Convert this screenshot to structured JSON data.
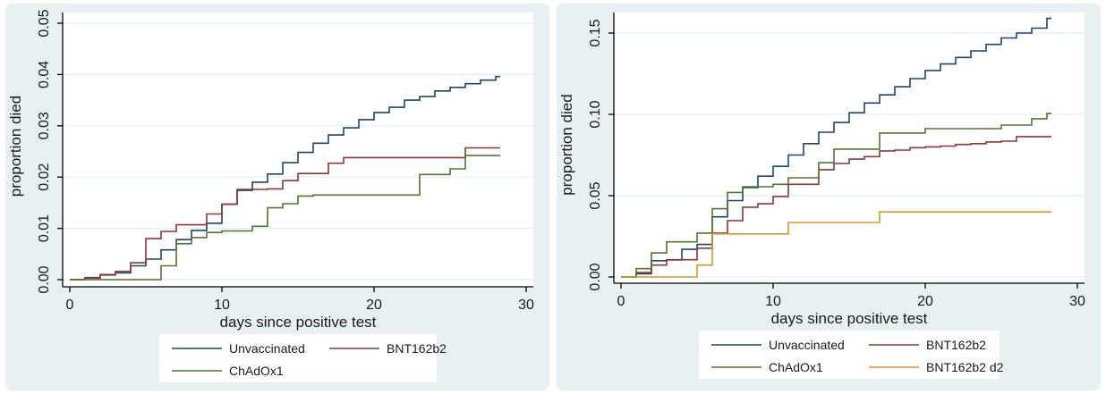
{
  "figure": {
    "background": "#ffffff",
    "panel_background": "#e9f0f2",
    "plot_background": "#ffffff",
    "grid_color": "#e4eef2",
    "axis_color": "#000000",
    "text_color": "#1a1a1a",
    "legend_background": "#ffffff"
  },
  "chart_data": [
    {
      "type": "line",
      "line_style": "step-after",
      "panel": "left",
      "title": "",
      "xlabel": "days since positive test",
      "ylabel": "proportion died",
      "xlim": [
        0,
        30
      ],
      "ylim": [
        0,
        0.05
      ],
      "xticks": [
        0,
        10,
        20,
        30
      ],
      "xtick_labels": [
        "0",
        "10",
        "20",
        "30"
      ],
      "yticks": [
        0,
        0.01,
        0.02,
        0.03,
        0.04,
        0.05
      ],
      "ytick_labels": [
        "0.00",
        "0.01",
        "0.02",
        "0.03",
        "0.04",
        "0.05"
      ],
      "grid": "horizontal",
      "legend_position": "bottom-center",
      "legend_columns": 2,
      "x": [
        0,
        1,
        2,
        3,
        4,
        5,
        6,
        7,
        8,
        9,
        10,
        11,
        12,
        13,
        14,
        15,
        16,
        17,
        18,
        19,
        20,
        21,
        22,
        23,
        24,
        25,
        26,
        27,
        28
      ],
      "series": [
        {
          "name": "Unvaccinated",
          "color": "#1a476f",
          "values": [
            0,
            0.0004,
            0.0009,
            0.0013,
            0.0027,
            0.004,
            0.0058,
            0.0078,
            0.0096,
            0.011,
            0.0147,
            0.0174,
            0.019,
            0.0206,
            0.0228,
            0.0248,
            0.0266,
            0.0282,
            0.0296,
            0.0312,
            0.0326,
            0.0336,
            0.035,
            0.0357,
            0.0368,
            0.0375,
            0.0382,
            0.0389,
            0.0396
          ]
        },
        {
          "name": "BNT162b2",
          "color": "#90353b",
          "values": [
            0,
            0.0003,
            0.001,
            0.0016,
            0.0033,
            0.008,
            0.0094,
            0.0107,
            0.0107,
            0.0128,
            0.0147,
            0.0176,
            0.0176,
            0.0177,
            0.0193,
            0.0207,
            0.0207,
            0.0227,
            0.0238,
            0.0238,
            0.0238,
            0.0238,
            0.0238,
            0.0238,
            0.0238,
            0.0238,
            0.0257,
            0.0257,
            0.0257
          ]
        },
        {
          "name": "ChAdOx1",
          "color": "#55752f",
          "values": [
            0,
            0,
            0,
            0,
            0,
            0,
            0.0027,
            0.007,
            0.0082,
            0.0092,
            0.0095,
            0.0095,
            0.0104,
            0.014,
            0.0148,
            0.0163,
            0.0165,
            0.0165,
            0.0165,
            0.0165,
            0.0165,
            0.0165,
            0.0165,
            0.0205,
            0.0205,
            0.0216,
            0.0242,
            0.0242,
            0.0242
          ]
        }
      ]
    },
    {
      "type": "line",
      "line_style": "step-after",
      "panel": "right",
      "title": "",
      "xlabel": "days since positive test",
      "ylabel": "proportion died",
      "xlim": [
        0,
        30
      ],
      "ylim": [
        0,
        0.15
      ],
      "xticks": [
        0,
        10,
        20,
        30
      ],
      "xtick_labels": [
        "0",
        "10",
        "20",
        "30"
      ],
      "yticks": [
        0,
        0.05,
        0.1,
        0.15
      ],
      "ytick_labels": [
        "0.00",
        "0.05",
        "0.10",
        "0.15"
      ],
      "grid": "horizontal",
      "legend_position": "bottom-center",
      "legend_columns": 2,
      "x": [
        0,
        1,
        2,
        3,
        4,
        5,
        6,
        7,
        8,
        9,
        10,
        11,
        12,
        13,
        14,
        15,
        16,
        17,
        18,
        19,
        20,
        21,
        22,
        23,
        24,
        25,
        26,
        27,
        28
      ],
      "series": [
        {
          "name": "Unvaccinated",
          "color": "#1a476f",
          "values": [
            0,
            0.002,
            0.01,
            0.0105,
            0.017,
            0.02,
            0.037,
            0.047,
            0.055,
            0.062,
            0.068,
            0.075,
            0.082,
            0.089,
            0.095,
            0.101,
            0.107,
            0.112,
            0.117,
            0.122,
            0.127,
            0.131,
            0.135,
            0.139,
            0.143,
            0.147,
            0.15,
            0.153,
            0.159
          ]
        },
        {
          "name": "BNT162b2",
          "color": "#90353b",
          "values": [
            0,
            0.0027,
            0.0073,
            0.0106,
            0.0106,
            0.0177,
            0.027,
            0.0346,
            0.0429,
            0.045,
            0.0495,
            0.057,
            0.057,
            0.066,
            0.0698,
            0.0725,
            0.074,
            0.0775,
            0.078,
            0.0795,
            0.08,
            0.0805,
            0.0815,
            0.082,
            0.083,
            0.0835,
            0.0863,
            0.0863,
            0.0863
          ]
        },
        {
          "name": "ChAdOx1",
          "color": "#55752f",
          "values": [
            0,
            0.0051,
            0.0148,
            0.0216,
            0.0216,
            0.027,
            0.042,
            0.052,
            0.0555,
            0.0555,
            0.057,
            0.061,
            0.061,
            0.0703,
            0.0786,
            0.0786,
            0.0786,
            0.0885,
            0.0885,
            0.0885,
            0.0912,
            0.0912,
            0.0912,
            0.0912,
            0.0912,
            0.0934,
            0.0934,
            0.0973,
            0.1005
          ]
        },
        {
          "name": "BNT162b2 d2",
          "color": "#d9982f",
          "values": [
            0,
            0,
            0,
            0,
            0,
            0.0073,
            0.0265,
            0.0265,
            0.0265,
            0.0265,
            0.0265,
            0.0335,
            0.0335,
            0.0335,
            0.0335,
            0.0335,
            0.0335,
            0.04,
            0.04,
            0.04,
            0.04,
            0.04,
            0.04,
            0.04,
            0.04,
            0.04,
            0.04,
            0.04,
            0.04
          ]
        }
      ]
    }
  ]
}
